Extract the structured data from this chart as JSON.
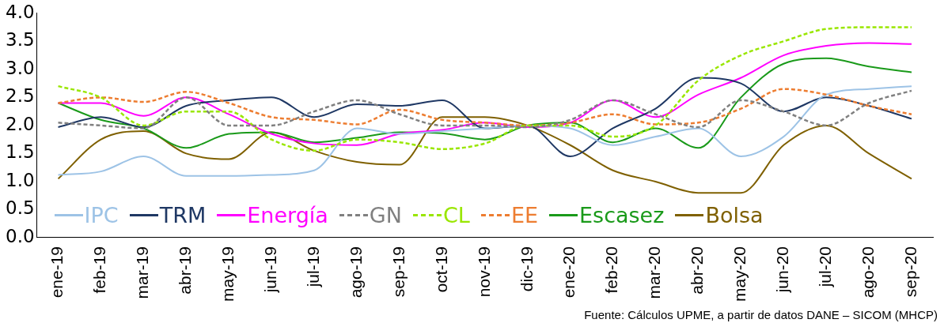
{
  "chart_data": {
    "type": "line",
    "categories": [
      "ene-19",
      "feb-19",
      "mar-19",
      "abr-19",
      "may-19",
      "jun-19",
      "jul-19",
      "ago-19",
      "sep-19",
      "oct-19",
      "nov-19",
      "dic-19",
      "ene-20",
      "feb-20",
      "mar-20",
      "abr-20",
      "may-20",
      "jun-20",
      "jul-20",
      "ago-20",
      "sep-20"
    ],
    "series": [
      {
        "name": "IPC",
        "color": "#9dc3e6",
        "values": [
          1.12,
          1.18,
          1.45,
          1.1,
          1.1,
          1.12,
          1.2,
          1.95,
          1.85,
          1.9,
          1.95,
          2.0,
          1.95,
          1.65,
          1.8,
          1.95,
          1.45,
          1.8,
          2.55,
          2.65,
          2.7
        ]
      },
      {
        "name": "TRM",
        "color": "#1f3864",
        "values": [
          1.97,
          2.15,
          1.97,
          2.35,
          2.45,
          2.5,
          2.15,
          2.38,
          2.35,
          2.45,
          1.95,
          2.0,
          1.45,
          1.95,
          2.3,
          2.85,
          2.75,
          2.25,
          2.5,
          2.35,
          2.12
        ]
      },
      {
        "name": "Energía",
        "color": "#ff00ff",
        "values": [
          2.4,
          2.4,
          2.17,
          2.5,
          2.2,
          1.85,
          1.68,
          1.65,
          1.85,
          1.92,
          2.05,
          1.97,
          2.05,
          2.45,
          2.15,
          2.55,
          2.85,
          3.25,
          3.42,
          3.47,
          3.45
        ]
      },
      {
        "name": "GN",
        "color": "#808080",
        "line_style": "dashed",
        "values": [
          2.05,
          2.0,
          1.95,
          2.5,
          2.0,
          2.0,
          2.25,
          2.45,
          2.2,
          2.0,
          2.0,
          1.97,
          2.1,
          2.45,
          2.2,
          1.97,
          2.45,
          2.25,
          2.0,
          2.4,
          2.62
        ]
      },
      {
        "name": "CL",
        "color": "#99e600",
        "line_style": "dashed",
        "values": [
          2.7,
          2.5,
          2.0,
          2.25,
          2.25,
          1.75,
          1.55,
          1.75,
          1.7,
          1.58,
          1.68,
          2.0,
          2.0,
          1.8,
          2.0,
          2.8,
          3.25,
          3.5,
          3.72,
          3.75,
          3.75
        ]
      },
      {
        "name": "EE",
        "color": "#ed7d31",
        "line_style": "dashed",
        "values": [
          2.4,
          2.5,
          2.42,
          2.6,
          2.4,
          2.15,
          2.1,
          2.02,
          2.28,
          2.1,
          2.05,
          2.0,
          2.05,
          2.2,
          2.02,
          2.05,
          2.3,
          2.65,
          2.55,
          2.35,
          2.2
        ]
      },
      {
        "name": "Escasez",
        "color": "#1a9a1a",
        "values": [
          2.4,
          2.1,
          1.95,
          1.6,
          1.85,
          1.88,
          1.7,
          1.78,
          1.88,
          1.86,
          1.75,
          2.0,
          2.05,
          1.7,
          1.95,
          1.6,
          2.5,
          3.1,
          3.2,
          3.05,
          2.95
        ]
      },
      {
        "name": "Bolsa",
        "color": "#7f6000",
        "values": [
          1.05,
          1.75,
          1.9,
          1.5,
          1.4,
          1.88,
          1.55,
          1.35,
          1.3,
          2.15,
          2.15,
          2.0,
          1.65,
          1.2,
          1.0,
          0.8,
          0.8,
          1.65,
          2.0,
          1.5,
          1.05
        ]
      }
    ],
    "ylim": [
      0,
      4
    ],
    "yticks": [
      {
        "value": 0,
        "label": "0.0"
      },
      {
        "value": 0.5,
        "label": "0.5"
      },
      {
        "value": 1,
        "label": "1.0"
      },
      {
        "value": 1.5,
        "label": "1.5"
      },
      {
        "value": 2,
        "label": "2.0"
      },
      {
        "value": 2.5,
        "label": "2.5"
      },
      {
        "value": 3,
        "label": "3.0"
      },
      {
        "value": 3.5,
        "label": "3.5"
      },
      {
        "value": 4,
        "label": "4.0"
      }
    ],
    "grid": false,
    "legend": "bottom",
    "marker": "none",
    "line_style": "solid",
    "annotations": [
      "Fuente: Cálculos UPME, a partir de datos DANE – SICOM (MHCP)"
    ]
  }
}
